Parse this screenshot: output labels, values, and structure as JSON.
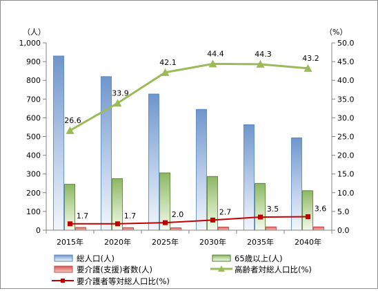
{
  "chart_data": {
    "type": "bar",
    "categories": [
      "2015年",
      "2020年",
      "2025年",
      "2030年",
      "2035年",
      "2040年"
    ],
    "left_axis": {
      "unit": "（人）",
      "ylim": [
        0,
        1000
      ],
      "ticks": [
        0,
        100,
        200,
        300,
        400,
        500,
        600,
        700,
        800,
        900,
        1000
      ],
      "tick_labels": [
        "0",
        "100",
        "200",
        "300",
        "400",
        "500",
        "600",
        "700",
        "800",
        "900",
        "1,000"
      ]
    },
    "right_axis": {
      "unit": "（%）",
      "ylim": [
        0,
        50
      ],
      "ticks": [
        0,
        5,
        10,
        15,
        20,
        25,
        30,
        35,
        40,
        45,
        50
      ],
      "tick_labels": [
        "0.0",
        "5.0",
        "10.0",
        "15.0",
        "20.0",
        "25.0",
        "30.0",
        "35.0",
        "40.0",
        "45.0",
        "50.0"
      ]
    },
    "series": [
      {
        "name": "総人口(人)",
        "type": "bar",
        "axis": "left",
        "values": [
          930,
          820,
          727,
          645,
          563,
          493
        ]
      },
      {
        "name": "65歳以上(人)",
        "type": "bar",
        "axis": "left",
        "values": [
          245,
          275,
          306,
          287,
          250,
          211
        ]
      },
      {
        "name": "要介護(支援)者数(人)",
        "type": "bar",
        "axis": "left",
        "values": [
          15,
          14,
          13,
          17,
          18,
          18
        ]
      },
      {
        "name": "高齢者対総人口比(%)",
        "type": "line",
        "axis": "right",
        "values": [
          26.6,
          33.9,
          42.1,
          44.4,
          44.3,
          43.2
        ],
        "labels": [
          "26.6",
          "33.9",
          "42.1",
          "44.4",
          "44.3",
          "43.2"
        ]
      },
      {
        "name": "要介護者等対総人口比(%)",
        "type": "line",
        "axis": "right",
        "values": [
          1.7,
          1.7,
          2.0,
          2.7,
          3.5,
          3.6
        ],
        "labels": [
          "1.7",
          "1.7",
          "2.0",
          "2.7",
          "3.5",
          "3.6"
        ]
      }
    ],
    "grid": false,
    "legend_position": "bottom",
    "colors": {
      "total_bar": "#4f81bd",
      "elderly_bar": "#77a850",
      "care_bar": "#c0504d",
      "elderly_ratio_line": "#9bbb59",
      "care_ratio_line": "#c00000"
    }
  }
}
